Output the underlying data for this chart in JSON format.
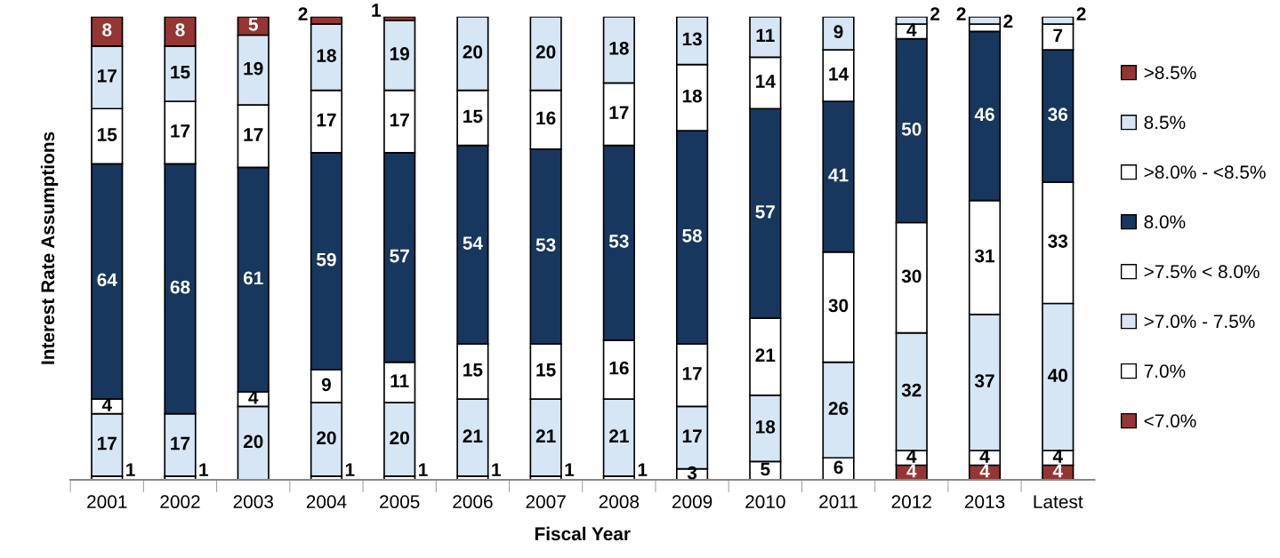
{
  "chart_data": {
    "type": "bar",
    "stacked": true,
    "xlabel": "Fiscal Year",
    "ylabel": "Interest Rate Assumptions",
    "data_labels": true,
    "legend": "right",
    "grid": false,
    "tick_labels": "x",
    "categories": [
      "2001",
      "2002",
      "2003",
      "2004",
      "2005",
      "2006",
      "2007",
      "2008",
      "2009",
      "2010",
      "2011",
      "2012",
      "2013",
      "Latest"
    ],
    "series": [
      {
        "name": "<7.0%",
        "color": "#943634",
        "values": [
          null,
          null,
          null,
          null,
          null,
          null,
          null,
          null,
          null,
          null,
          null,
          4,
          4,
          4
        ]
      },
      {
        "name": "7.0%",
        "color": "#ffffff",
        "values": [
          1,
          1,
          null,
          1,
          1,
          1,
          1,
          1,
          3,
          5,
          6,
          4,
          4,
          4
        ]
      },
      {
        "name": ">7.0% - 7.5%",
        "color": "#d6e6f5",
        "values": [
          17,
          17,
          20,
          20,
          20,
          21,
          21,
          21,
          17,
          18,
          26,
          32,
          37,
          40
        ]
      },
      {
        "name": ">7.5% < 8.0%",
        "color": "#ffffff",
        "values": [
          4,
          null,
          4,
          9,
          11,
          15,
          15,
          16,
          17,
          21,
          30,
          30,
          31,
          33
        ]
      },
      {
        "name": "8.0%",
        "color": "#17375e",
        "values": [
          64,
          68,
          61,
          59,
          57,
          54,
          53,
          53,
          58,
          57,
          41,
          50,
          46,
          36
        ]
      },
      {
        "name": ">8.0% - <8.5%",
        "color": "#ffffff",
        "values": [
          15,
          17,
          17,
          17,
          17,
          15,
          16,
          17,
          18,
          14,
          14,
          4,
          2,
          7
        ]
      },
      {
        "name": "8.5%",
        "color": "#d6e6f5",
        "values": [
          17,
          15,
          19,
          18,
          19,
          20,
          20,
          18,
          13,
          11,
          9,
          2,
          2,
          2
        ]
      },
      {
        "name": ">8.5%",
        "color": "#943634",
        "values": [
          8,
          8,
          5,
          2,
          1,
          null,
          null,
          null,
          null,
          null,
          null,
          null,
          null,
          null
        ]
      }
    ]
  }
}
